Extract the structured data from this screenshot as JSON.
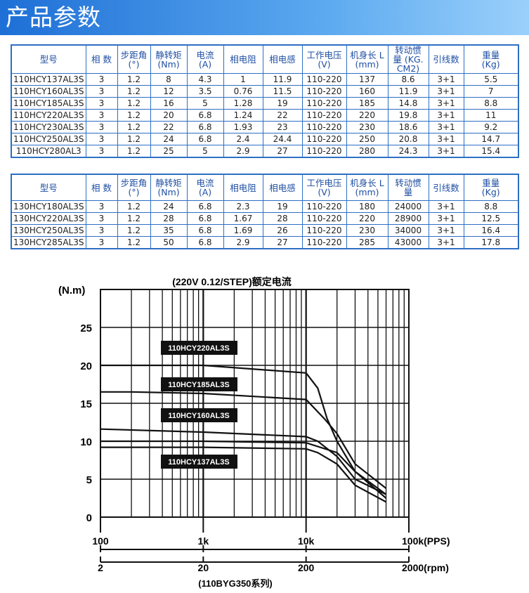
{
  "page": {
    "banner_title": "产品参数"
  },
  "table1": {
    "headers": [
      "型号",
      "相 数",
      "步距角\n(°)",
      "静转矩\n(Nm)",
      "电流\n(A)",
      "相电阻",
      "相电感",
      "工作电压\n(V)",
      "机身长 L\n(mm)",
      "转动惯\n量 (KG.\nCM2)",
      "引线数",
      "重量\n(Kg)"
    ],
    "rows": [
      [
        "110HCY137AL3S",
        "3",
        "1.2",
        "8",
        "4.3",
        "1",
        "11.9",
        "110-220",
        "137",
        "8.6",
        "3+1",
        "5.5"
      ],
      [
        "110HCY160AL3S",
        "3",
        "1.2",
        "12",
        "3.5",
        "0.76",
        "11.5",
        "110-220",
        "160",
        "11.9",
        "3+1",
        "7"
      ],
      [
        "110HCY185AL3S",
        "3",
        "1.2",
        "16",
        "5",
        "1.28",
        "19",
        "110-220",
        "185",
        "14.8",
        "3+1",
        "8.8"
      ],
      [
        "110HCY220AL3S",
        "3",
        "1.2",
        "20",
        "6.8",
        "1.24",
        "22",
        "110-220",
        "220",
        "19.8",
        "3+1",
        "11"
      ],
      [
        "110HCY230AL3S",
        "3",
        "1.2",
        "22",
        "6.8",
        "1.93",
        "23",
        "110-220",
        "230",
        "18.6",
        "3+1",
        "9.2"
      ],
      [
        "110HCY250AL3S",
        "3",
        "1.2",
        "24",
        "6.8",
        "2.4",
        "24.4",
        "110-220",
        "250",
        "20.8",
        "3+1",
        "14.7"
      ],
      [
        "110HCY280AL3",
        "3",
        "1.2",
        "25",
        "5",
        "2.9",
        "27",
        "110-220",
        "280",
        "24.3",
        "3+1",
        "15.4"
      ]
    ]
  },
  "table2": {
    "headers": [
      "型号",
      "相 数",
      "步距角\n(°)",
      "静转矩\n(Nm)",
      "电流\n(A)",
      "相电阻",
      "相电感",
      "工作电压\n(V)",
      "机身长 L\n(mm)",
      "转动惯\n量",
      "引线数",
      "重量\n(Kg)"
    ],
    "rows": [
      [
        "130HCY180AL3S",
        "3",
        "1.2",
        "24",
        "6.8",
        "2.3",
        "19",
        "110-220",
        "180",
        "24000",
        "3+1",
        "8.8"
      ],
      [
        "130HCY220AL3S",
        "3",
        "1.2",
        "28",
        "6.8",
        "1.67",
        "28",
        "110-220",
        "220",
        "28900",
        "3+1",
        "12.5"
      ],
      [
        "130HCY250AL3S",
        "3",
        "1.2",
        "35",
        "6.8",
        "1.69",
        "26",
        "110-220",
        "230",
        "34000",
        "3+1",
        "16.4"
      ],
      [
        "130HCY285AL3S",
        "3",
        "1.2",
        "50",
        "6.8",
        "2.9",
        "27",
        "110-220",
        "285",
        "43000",
        "3+1",
        "17.8"
      ]
    ]
  },
  "chart_data": {
    "type": "line",
    "title": "(220V 0.12/STEP)额定电流",
    "ylabel": "(N.m)",
    "subtitle": "(110BYG350系列)",
    "x_scale": "log",
    "xlim": [
      100,
      100000
    ],
    "ylim": [
      0,
      30
    ],
    "grid": true,
    "y_ticks": [
      "0",
      "5",
      "10",
      "15",
      "20",
      "25"
    ],
    "y_tick_values": [
      0,
      5,
      10,
      15,
      20,
      25
    ],
    "x_ticks_pps": [
      "100",
      "1k",
      "10k",
      "100k(PPS)"
    ],
    "x_ticks_pps_values": [
      100,
      1000,
      10000,
      100000
    ],
    "x_ticks_rpm": [
      "2",
      "20",
      "200",
      "2000(rpm)"
    ],
    "series": [
      {
        "name": "110HCY220AL3S",
        "x": [
          100,
          1000,
          10000,
          13000,
          16000,
          20000,
          30000,
          60000
        ],
        "y": [
          20,
          20,
          19,
          17,
          13,
          10,
          6,
          3
        ]
      },
      {
        "name": "110HCY185AL3S",
        "x": [
          100,
          200,
          1000,
          10000,
          15000,
          20000,
          30000,
          60000
        ],
        "y": [
          16.5,
          16.5,
          16.3,
          15.5,
          13,
          11,
          7,
          3.8
        ]
      },
      {
        "name": "110HCY160AL3S",
        "x": [
          100,
          1000,
          10000,
          13000,
          20000,
          30000,
          60000
        ],
        "y": [
          11.6,
          11.2,
          10.6,
          10,
          8,
          5,
          3
        ]
      },
      {
        "name": "110HCY137AL3S",
        "x": [
          100,
          1000,
          10000,
          13000,
          20000,
          30000,
          60000
        ],
        "y": [
          9.2,
          9.2,
          9,
          8.5,
          7,
          4.2,
          2
        ]
      }
    ],
    "extra_curves": [
      {
        "x": [
          100,
          1000,
          10000,
          20000,
          30000,
          60000
        ],
        "y": [
          10,
          10,
          9.8,
          8.5,
          6,
          2.5
        ]
      }
    ]
  }
}
